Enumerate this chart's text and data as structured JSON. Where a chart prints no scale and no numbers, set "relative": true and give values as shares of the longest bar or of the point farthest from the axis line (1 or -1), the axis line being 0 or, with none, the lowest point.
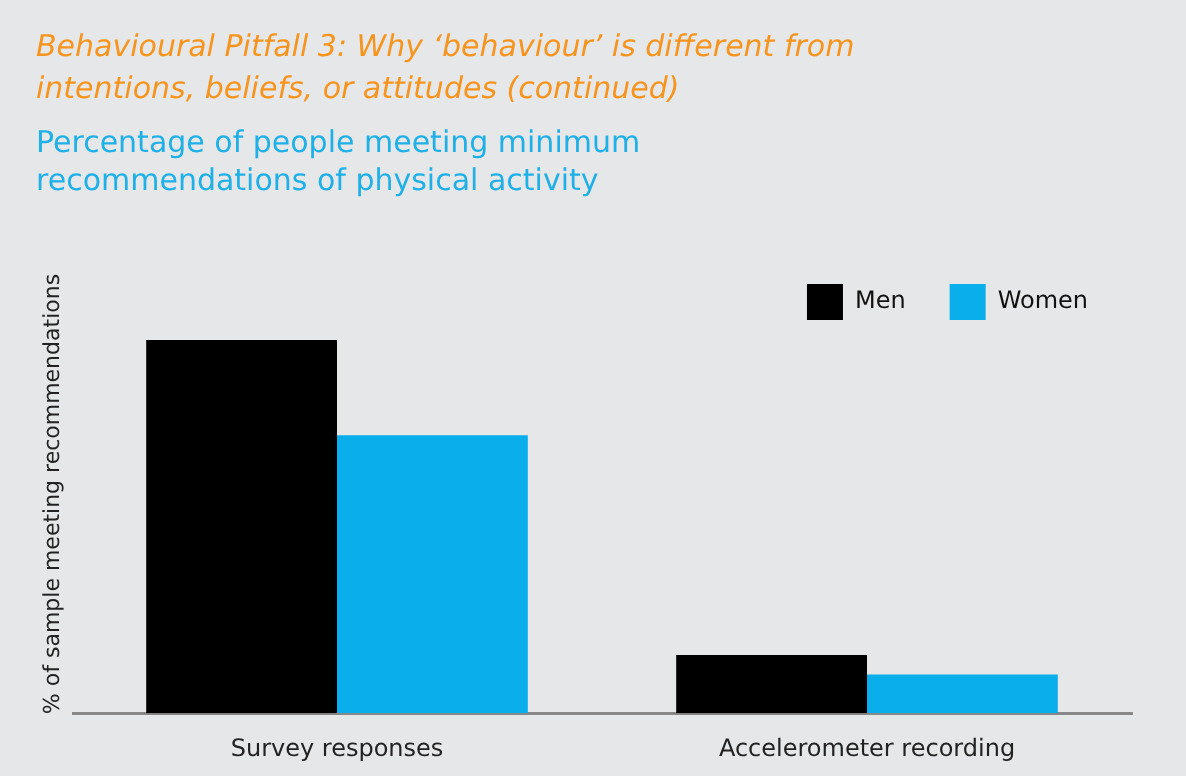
{
  "chart_data": {
    "type": "bar",
    "title": "Behavioural Pitfall 3:  Why ‘behaviour’ is different from intentions, beliefs, or attitudes (continued)",
    "subtitle": "Percentage of people meeting minimum recommendations of physical activity",
    "ylabel": "% of sample meeting recommendations",
    "categories": [
      "Survey responses",
      "Accelerometer recording"
    ],
    "relative": true,
    "legend": "top right",
    "grid": false,
    "series": [
      {
        "name": "Men",
        "color": "#000000",
        "values": [
          1,
          0.156
        ]
      },
      {
        "name": "Women",
        "color": "#0aaeea",
        "values": [
          0.745,
          0.104
        ]
      }
    ]
  }
}
